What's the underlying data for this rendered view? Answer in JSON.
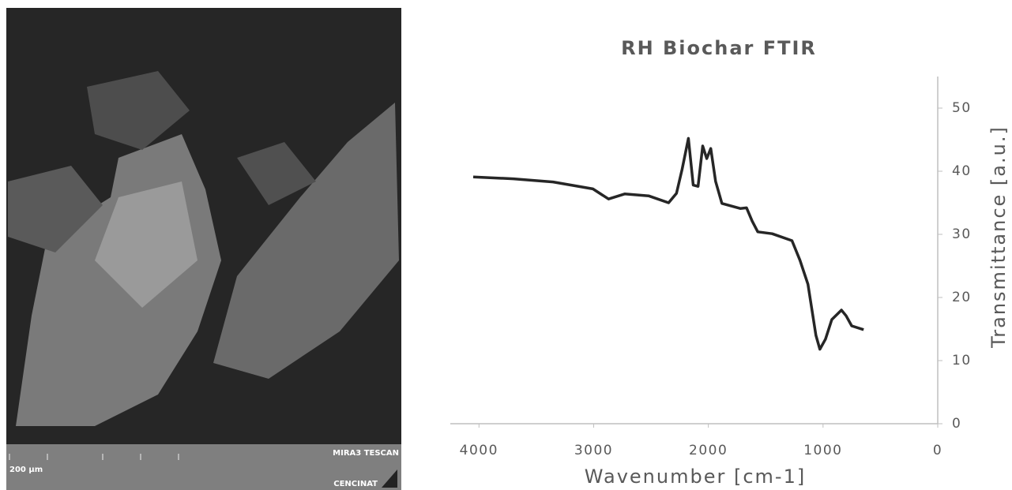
{
  "image": {
    "scale_bar": "200 µm",
    "instrument": "MIRA3 TESCAN",
    "lab": "CENCINAT"
  },
  "chart_data": {
    "type": "line",
    "title": "RH Biochar FTIR",
    "x_label": "Wavenumber [cm-1]",
    "y_label": "Transmittance [a.u.]",
    "x": [
      4050,
      3700,
      3354,
      3007,
      2870,
      2730,
      2521,
      2347,
      2278,
      2229,
      2174,
      2132,
      2090,
      2049,
      2014,
      1979,
      1937,
      1882,
      1722,
      1667,
      1618,
      1569,
      1444,
      1271,
      1201,
      1132,
      1062,
      1028,
      979,
      924,
      840,
      799,
      750,
      646
    ],
    "values": [
      39.1,
      38.8,
      38.3,
      37.2,
      35.6,
      36.4,
      36.1,
      35,
      36.5,
      40.3,
      45.2,
      37.8,
      37.6,
      44,
      42,
      43.6,
      38.4,
      34.9,
      34.1,
      34.2,
      32.1,
      30.4,
      30.1,
      29,
      25.9,
      22.1,
      14,
      11.8,
      13.4,
      16.5,
      18,
      17.1,
      15.5,
      14.9
    ],
    "color": "#262626",
    "xlim": [
      4250,
      0
    ],
    "xticks": [
      4000,
      3000,
      2000,
      1000,
      0
    ],
    "ylim": [
      0,
      55
    ],
    "yticks": [
      0,
      10,
      20,
      30,
      40,
      50
    ],
    "grid": false
  }
}
